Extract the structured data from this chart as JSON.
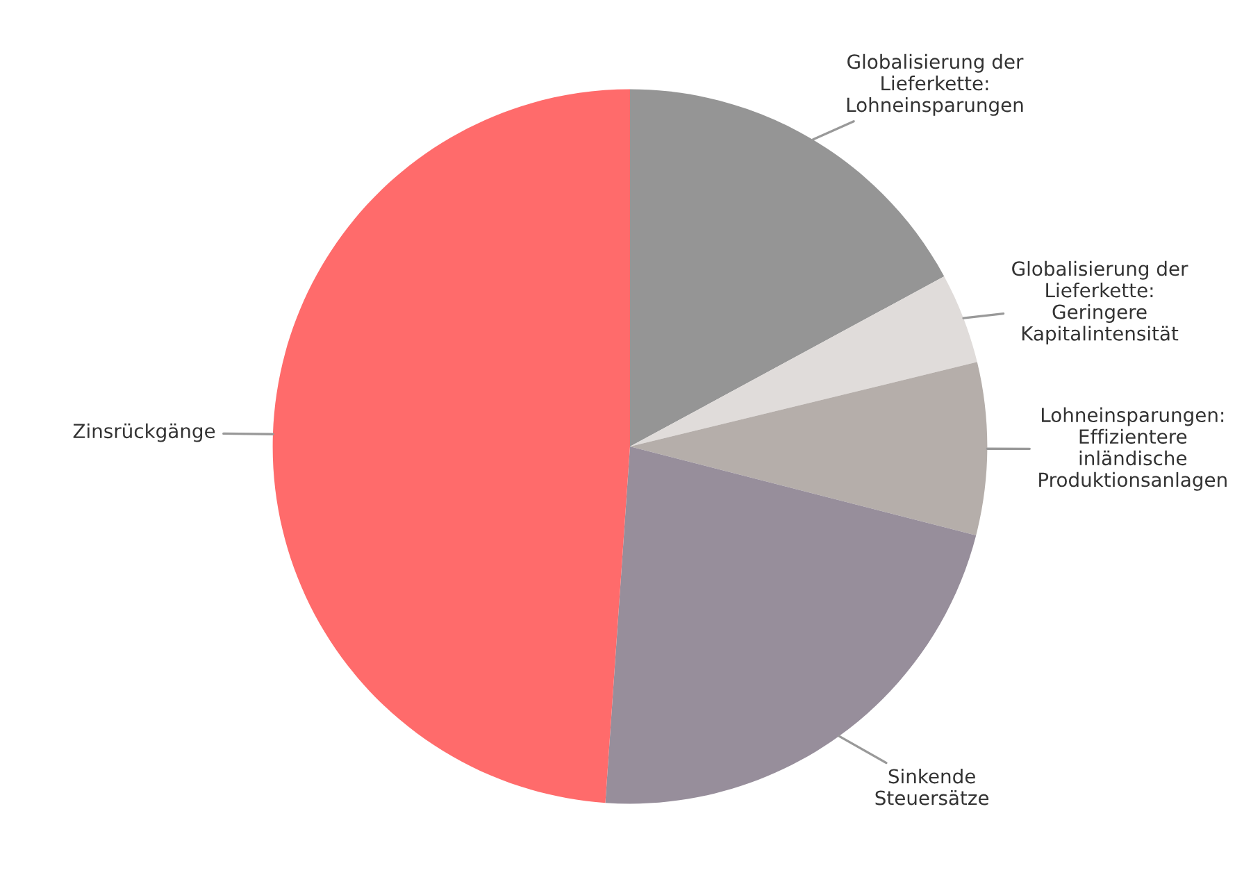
{
  "chart_data": {
    "type": "pie",
    "categories": [
      "Globalisierung der\nLieferkette:\nLohneinsparungen",
      "Globalisierung der\nLieferkette:\nGeringere\nKapitalintensität",
      "Lohneinsparungen:\nEffizientere\ninländische\nProduktionsanlagen",
      "Sinkende\nSteuersätze",
      "Zinsrückgänge"
    ],
    "values": [
      17.1,
      4.1,
      7.8,
      22.1,
      48.9
    ],
    "colors": [
      "#959595",
      "#e0dcda",
      "#b5aeaa",
      "#978e9b",
      "#ff6b6b"
    ]
  }
}
